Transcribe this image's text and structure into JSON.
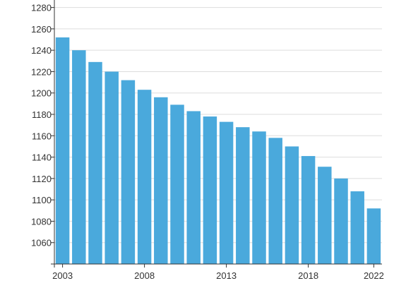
{
  "chart_data": {
    "type": "bar",
    "title": "",
    "xlabel": "",
    "ylabel": "",
    "categories": [
      "2003",
      "2004",
      "2005",
      "2006",
      "2007",
      "2008",
      "2009",
      "2010",
      "2011",
      "2012",
      "2013",
      "2014",
      "2015",
      "2016",
      "2017",
      "2018",
      "2019",
      "2020",
      "2021",
      "2022"
    ],
    "values": [
      1252,
      1240,
      1229,
      1220,
      1212,
      1203,
      1196,
      1189,
      1183,
      1178,
      1173,
      1168,
      1164,
      1158,
      1150,
      1141,
      1131,
      1120,
      1108,
      1092
    ],
    "x_tick_labels": [
      "2003",
      "2008",
      "2013",
      "2018",
      "2022"
    ],
    "y_ticks": [
      "1060",
      "1080",
      "1100",
      "1120",
      "1140",
      "1160",
      "1180",
      "1200",
      "1220",
      "1240",
      "1260",
      "1280"
    ],
    "ylim": [
      1040,
      1287
    ],
    "grid": "horizontal",
    "legend": "none",
    "bar_color": "#4aa9dc"
  }
}
